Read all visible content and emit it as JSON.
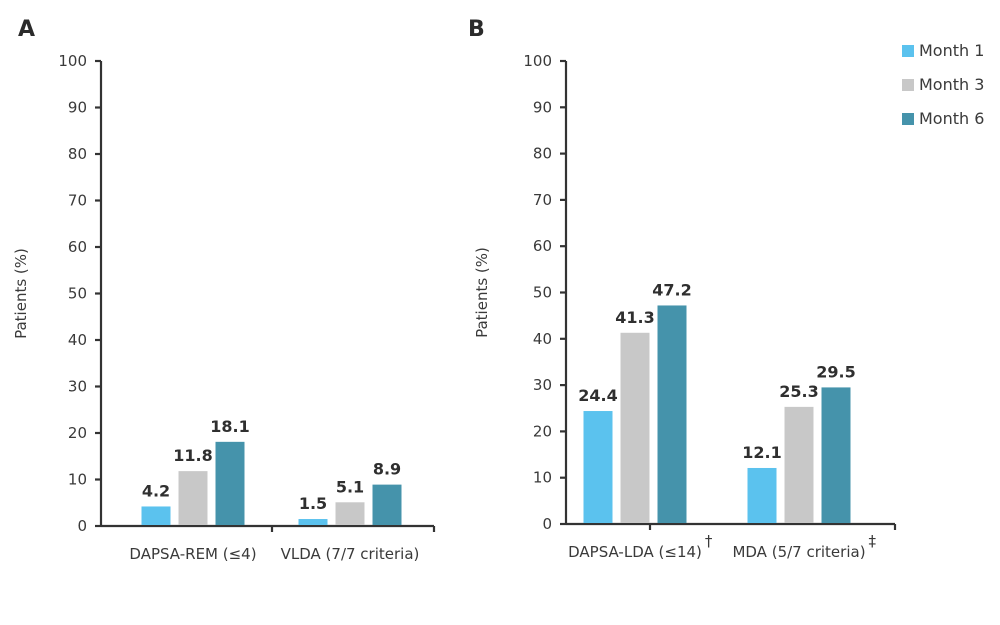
{
  "chart_data": [
    {
      "type": "bar",
      "panel": "A",
      "title": "",
      "xlabel": "",
      "ylabel": "Patients (%)",
      "ylim": [
        0,
        100
      ],
      "yticks": [
        0,
        10,
        20,
        30,
        40,
        50,
        60,
        70,
        80,
        90,
        100
      ],
      "categories": [
        "DAPSA-REM (≤4)",
        "VLDA (7/7 criteria)"
      ],
      "category_marks": [
        "",
        ""
      ],
      "series": [
        {
          "name": "Month 1",
          "color": "#5bc2ee",
          "values": [
            4.2,
            1.5
          ]
        },
        {
          "name": "Month 3",
          "color": "#c8c8c8",
          "values": [
            11.8,
            5.1
          ]
        },
        {
          "name": "Month 6",
          "color": "#4593ab",
          "values": [
            18.1,
            8.9
          ]
        }
      ],
      "data_labels": true,
      "grid": false
    },
    {
      "type": "bar",
      "panel": "B",
      "title": "",
      "xlabel": "",
      "ylabel": "Patients (%)",
      "ylim": [
        0,
        100
      ],
      "yticks": [
        0,
        10,
        20,
        30,
        40,
        50,
        60,
        70,
        80,
        90,
        100
      ],
      "categories": [
        "DAPSA-LDA (≤14)",
        "MDA (5/7 criteria)"
      ],
      "category_marks": [
        "†",
        "‡"
      ],
      "series": [
        {
          "name": "Month 1",
          "color": "#5bc2ee",
          "values": [
            24.4,
            12.1
          ]
        },
        {
          "name": "Month 3",
          "color": "#c8c8c8",
          "values": [
            41.3,
            25.3
          ]
        },
        {
          "name": "Month 6",
          "color": "#4593ab",
          "values": [
            47.2,
            29.5
          ]
        }
      ],
      "data_labels": true,
      "grid": false,
      "legend": {
        "position": "top-right",
        "entries": [
          "Month 1",
          "Month 3",
          "Month 6"
        ]
      }
    }
  ]
}
